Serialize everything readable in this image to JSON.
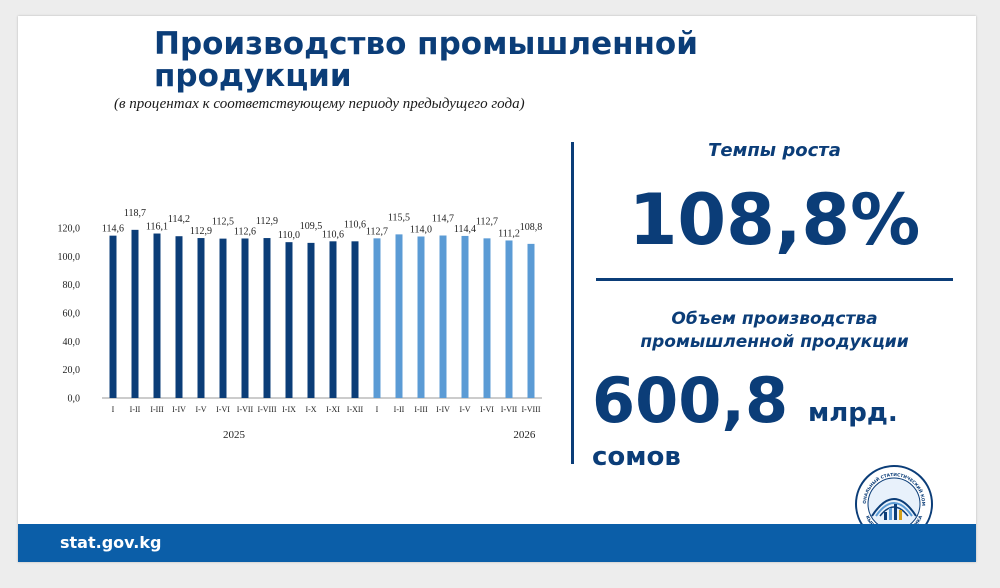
{
  "slide": {
    "title": "Производство промышленной продукции",
    "subtitle": "(в процентах к соответствующему периоду предыдущего года)",
    "growth_label": "Темпы роста",
    "growth_value": "108,8%",
    "volume_label": "Объем производства промышленной продукции",
    "volume_value": "600,8",
    "volume_unit_1": "млрд.",
    "volume_unit_2": "сомов",
    "footer_link": "stat.gov.kg",
    "logo_text_top": "НАЦИОНАЛЬНЫЙ СТАТИСТИЧЕСКИЙ КОМИТЕТ",
    "logo_text_bottom": "КЫРГЫЗСКАЯ РЕСПУБЛИКА"
  },
  "colors": {
    "brand_dark": "#0b3d78",
    "bar_2025": "#0b3d78",
    "bar_2026": "#5b9bd5",
    "footer": "#0b5ea8"
  },
  "chart_data": {
    "type": "bar",
    "categories": [
      "I",
      "I-II",
      "I-III",
      "I-IV",
      "I-V",
      "I-VI",
      "I-VII",
      "I-VIII",
      "I-IX",
      "I-X",
      "I-XI",
      "I-XII",
      "I",
      "I-II",
      "I-III",
      "I-IV",
      "I-V",
      "I-VI",
      "I-VII",
      "I-VIII"
    ],
    "values": [
      114.6,
      118.7,
      116.1,
      114.2,
      112.9,
      112.5,
      112.6,
      112.9,
      110.0,
      109.5,
      110.6,
      110.6,
      112.7,
      115.5,
      114.0,
      114.7,
      114.4,
      112.7,
      111.2,
      108.8
    ],
    "data_labels": [
      "114,6",
      "118,7",
      "116,1",
      "114,2",
      "112,9",
      "112,5",
      "112,6",
      "112,9",
      "110,0",
      "109,5",
      "110,6",
      "110,6",
      "112,7",
      "115,5",
      "114,0",
      "114,7",
      "114,4",
      "112,7",
      "111,2",
      "108,8"
    ],
    "year_groups": [
      {
        "label": "2025",
        "count": 12
      },
      {
        "label": "2026",
        "count": 8
      }
    ],
    "y_ticks": [
      "0,0",
      "20,0",
      "40,0",
      "60,0",
      "80,0",
      "100,0",
      "120,0"
    ],
    "ylim": [
      0,
      120
    ],
    "grid": false,
    "title": "",
    "xlabel": "",
    "ylabel": ""
  }
}
